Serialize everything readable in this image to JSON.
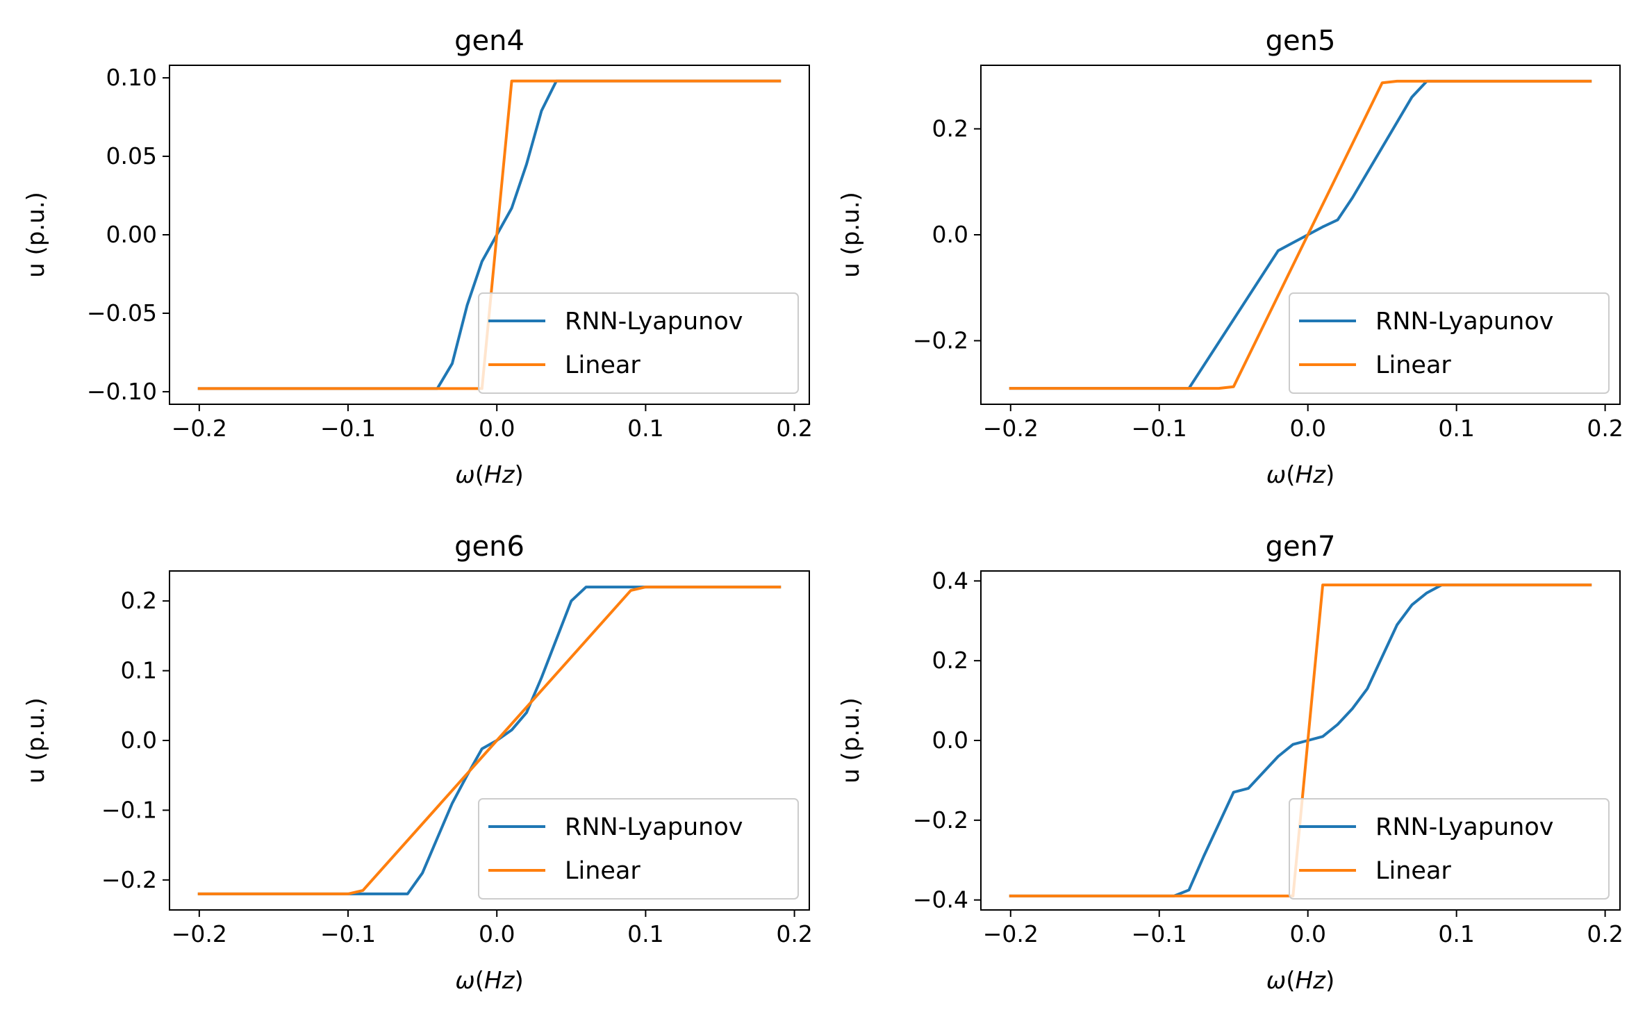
{
  "figure": {
    "colors": {
      "RNN-Lyapunov": "#1f77b4",
      "Linear": "#ff7f0e",
      "axes": "#000000",
      "legend_border": "#cccccc",
      "background": "#ffffff"
    }
  },
  "chart_data": [
    {
      "type": "line",
      "title": "gen4",
      "xlabel": "ω(Hz)",
      "ylabel": "u (p.u.)",
      "xlim": [
        -0.22,
        0.21
      ],
      "ylim": [
        -0.108,
        0.108
      ],
      "xticks": [
        -0.2,
        -0.1,
        0.0,
        0.1,
        0.2
      ],
      "xtick_labels": [
        "−0.2",
        "−0.1",
        "0.0",
        "0.1",
        "0.2"
      ],
      "yticks": [
        -0.1,
        -0.05,
        0.0,
        0.05,
        0.1
      ],
      "ytick_labels": [
        "−0.10",
        "−0.05",
        "0.00",
        "0.05",
        "0.10"
      ],
      "legend_position": "lower-right",
      "series": [
        {
          "name": "RNN-Lyapunov",
          "x": [
            -0.2,
            -0.04,
            -0.03,
            -0.02,
            -0.01,
            0.0,
            0.01,
            0.02,
            0.03,
            0.04,
            0.19
          ],
          "y": [
            -0.098,
            -0.098,
            -0.082,
            -0.045,
            -0.017,
            0.0,
            0.017,
            0.045,
            0.079,
            0.098,
            0.098
          ]
        },
        {
          "name": "Linear",
          "x": [
            -0.2,
            -0.01,
            0.01,
            0.19
          ],
          "y": [
            -0.098,
            -0.098,
            0.098,
            0.098
          ]
        }
      ]
    },
    {
      "type": "line",
      "title": "gen5",
      "xlabel": "ω(Hz)",
      "ylabel": "u (p.u.)",
      "xlim": [
        -0.22,
        0.21
      ],
      "ylim": [
        -0.32,
        0.32
      ],
      "xticks": [
        -0.2,
        -0.1,
        0.0,
        0.1,
        0.2
      ],
      "xtick_labels": [
        "−0.2",
        "−0.1",
        "0.0",
        "0.1",
        "0.2"
      ],
      "yticks": [
        -0.2,
        0.0,
        0.2
      ],
      "ytick_labels": [
        "−0.2",
        "0.0",
        "0.2"
      ],
      "legend_position": "lower-right",
      "series": [
        {
          "name": "RNN-Lyapunov",
          "x": [
            -0.2,
            -0.08,
            -0.02,
            -0.01,
            0.0,
            0.01,
            0.02,
            0.03,
            0.07,
            0.08,
            0.19
          ],
          "y": [
            -0.29,
            -0.29,
            -0.03,
            -0.015,
            0.0,
            0.015,
            0.028,
            0.07,
            0.26,
            0.29,
            0.29
          ]
        },
        {
          "name": "Linear",
          "x": [
            -0.2,
            -0.06,
            -0.05,
            0.0,
            0.05,
            0.06,
            0.19
          ],
          "y": [
            -0.29,
            -0.29,
            -0.287,
            0.0,
            0.287,
            0.29,
            0.29
          ]
        }
      ]
    },
    {
      "type": "line",
      "title": "gen6",
      "xlabel": "ω(Hz)",
      "ylabel": "u (p.u.)",
      "xlim": [
        -0.22,
        0.21
      ],
      "ylim": [
        -0.243,
        0.243
      ],
      "xticks": [
        -0.2,
        -0.1,
        0.0,
        0.1,
        0.2
      ],
      "xtick_labels": [
        "−0.2",
        "−0.1",
        "0.0",
        "0.1",
        "0.2"
      ],
      "yticks": [
        -0.2,
        -0.1,
        0.0,
        0.1,
        0.2
      ],
      "ytick_labels": [
        "−0.2",
        "−0.1",
        "0.0",
        "0.1",
        "0.2"
      ],
      "legend_position": "lower-right",
      "series": [
        {
          "name": "RNN-Lyapunov",
          "x": [
            -0.2,
            -0.06,
            -0.05,
            -0.04,
            -0.03,
            -0.02,
            -0.01,
            0.0,
            0.01,
            0.02,
            0.03,
            0.04,
            0.05,
            0.06,
            0.19
          ],
          "y": [
            -0.22,
            -0.22,
            -0.19,
            -0.14,
            -0.09,
            -0.05,
            -0.012,
            0.0,
            0.015,
            0.04,
            0.09,
            0.145,
            0.2,
            0.22,
            0.22
          ]
        },
        {
          "name": "Linear",
          "x": [
            -0.2,
            -0.1,
            -0.09,
            0.0,
            0.09,
            0.1,
            0.19
          ],
          "y": [
            -0.22,
            -0.22,
            -0.215,
            0.0,
            0.215,
            0.22,
            0.22
          ]
        }
      ]
    },
    {
      "type": "line",
      "title": "gen7",
      "xlabel": "ω(Hz)",
      "ylabel": "u (p.u.)",
      "xlim": [
        -0.22,
        0.21
      ],
      "ylim": [
        -0.425,
        0.425
      ],
      "xticks": [
        -0.2,
        -0.1,
        0.0,
        0.1,
        0.2
      ],
      "xtick_labels": [
        "−0.2",
        "−0.1",
        "0.0",
        "0.1",
        "0.2"
      ],
      "yticks": [
        -0.4,
        -0.2,
        0.0,
        0.2,
        0.4
      ],
      "ytick_labels": [
        "−0.4",
        "−0.2",
        "0.0",
        "0.2",
        "0.4"
      ],
      "legend_position": "lower-right",
      "series": [
        {
          "name": "RNN-Lyapunov",
          "x": [
            -0.2,
            -0.09,
            -0.08,
            -0.07,
            -0.06,
            -0.05,
            -0.04,
            -0.03,
            -0.02,
            -0.01,
            0.0,
            0.01,
            0.02,
            0.03,
            0.04,
            0.05,
            0.06,
            0.07,
            0.08,
            0.09,
            0.19
          ],
          "y": [
            -0.39,
            -0.39,
            -0.375,
            -0.29,
            -0.21,
            -0.13,
            -0.12,
            -0.08,
            -0.04,
            -0.01,
            0.0,
            0.01,
            0.04,
            0.08,
            0.13,
            0.21,
            0.29,
            0.34,
            0.37,
            0.39,
            0.39
          ]
        },
        {
          "name": "Linear",
          "x": [
            -0.2,
            -0.01,
            0.01,
            0.19
          ],
          "y": [
            -0.39,
            -0.39,
            0.39,
            0.39
          ]
        }
      ]
    }
  ]
}
